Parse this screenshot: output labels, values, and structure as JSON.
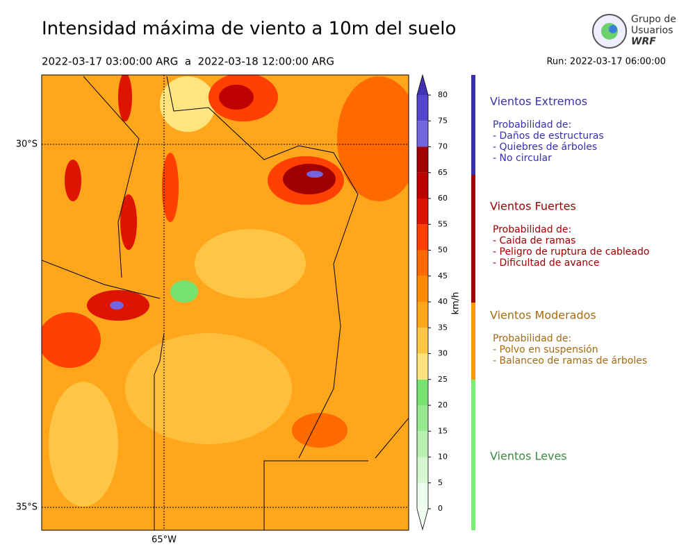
{
  "header": {
    "title": "Intensidad máxima de viento a 10m del suelo",
    "period": "2022-03-17 03:00:00 ARG  a  2022-03-18 12:00:00 ARG",
    "run": "Run: 2022-03-17 06:00:00",
    "logo": [
      "Grupo de",
      "Usuarios",
      "WRF"
    ]
  },
  "map": {
    "lat_labels": [
      "30°S",
      "35°S"
    ],
    "lon_labels": [
      "65°W"
    ]
  },
  "colorbar": {
    "label": "km/h",
    "ticks": [
      0,
      5,
      10,
      15,
      20,
      25,
      30,
      35,
      40,
      45,
      50,
      55,
      60,
      65,
      70,
      75,
      80
    ],
    "colors": [
      "#effff0",
      "#d5f8d0",
      "#b9f1b0",
      "#99e991",
      "#77e26f",
      "#ffe580",
      "#ffc545",
      "#ffa61a",
      "#ff8c00",
      "#ff6a00",
      "#ff4000",
      "#dc1400",
      "#bf0000",
      "#a00000",
      "#7464e0",
      "#5645cc",
      "#4432b4"
    ]
  },
  "legend": [
    {
      "title": "Vientos Extremos",
      "lines": [
        "Probabilidad de:",
        "- Daños de estructuras",
        "- Quiebres de árboles",
        "- No circular"
      ]
    },
    {
      "title": "Vientos Fuertes",
      "lines": [
        "Probabilidad de:",
        "- Caida de ramas",
        "- Peligro de ruptura de cableado",
        "- Dificultad de avance"
      ]
    },
    {
      "title": "Vientos Moderados",
      "lines": [
        "Probabilidad de:",
        "- Polvo en suspensión",
        "- Balanceo de ramas de árboles"
      ]
    },
    {
      "title": "Vientos Leves",
      "lines": []
    }
  ]
}
